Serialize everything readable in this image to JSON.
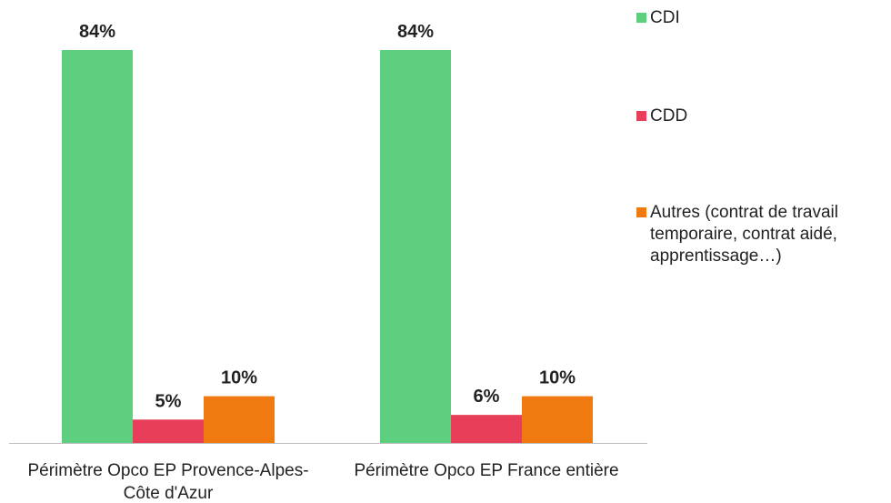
{
  "chart_data": {
    "type": "bar",
    "categories": [
      "Périmètre Opco EP Provence-Alpes-Côte d'Azur",
      "Périmètre Opco EP France entière"
    ],
    "series": [
      {
        "name": "CDI",
        "color": "#5ecf7f",
        "values": [
          84,
          84
        ],
        "value_labels": [
          "84%",
          "84%"
        ]
      },
      {
        "name": "CDD",
        "color": "#e83e5a",
        "values": [
          5,
          6
        ],
        "value_labels": [
          "5%",
          "6%"
        ]
      },
      {
        "name": "Autres (contrat de travail temporaire, contrat aidé, apprentissage…)",
        "color": "#f07a0f",
        "values": [
          10,
          10
        ],
        "value_labels": [
          "10%",
          "10%"
        ]
      }
    ]
  }
}
